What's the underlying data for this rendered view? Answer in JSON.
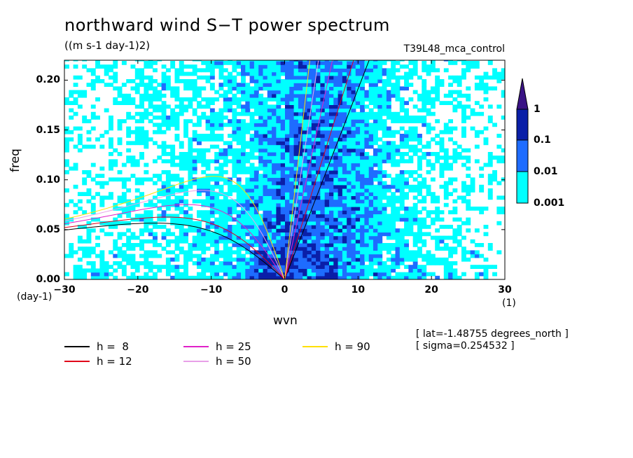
{
  "chart_data": {
    "type": "heatmap",
    "title": "northward wind S−T power spectrum",
    "units": "((m s-1 day-1)2)",
    "experiment": "T39L48_mca_control",
    "xlabel": "wvn",
    "xunit": "(1)",
    "ylabel": "freq",
    "yunit": "(day-1)",
    "xlim": [
      -30,
      30
    ],
    "ylim": [
      0,
      0.22
    ],
    "x_ticks": [
      -30,
      -20,
      -10,
      0,
      10,
      20,
      30
    ],
    "x_tick_labels": [
      "−30",
      "−20",
      "−10",
      "0",
      "10",
      "20",
      "30"
    ],
    "y_ticks": [
      0,
      0.05,
      0.1,
      0.15,
      0.2
    ],
    "y_tick_labels": [
      "0.00",
      "0.05",
      "0.10",
      "0.15",
      "0.20"
    ],
    "colorbar": {
      "levels": [
        0.001,
        0.01,
        0.1,
        1
      ],
      "labels": [
        "0.001",
        "0.01",
        "0.1",
        "1"
      ],
      "colors": [
        "#00ffff",
        "#1e6cff",
        "#0a1fa8",
        "#3a1385"
      ]
    },
    "annotations": [
      "[ lat=-1.48755 degrees_north ]",
      "[ sigma=0.254532 ]"
    ],
    "dispersion_curves": [
      {
        "label": "h =  8",
        "h": 8,
        "color": "#000000"
      },
      {
        "label": "h = 12",
        "h": 12,
        "color": "#e0001a"
      },
      {
        "label": "h = 25",
        "h": 25,
        "color": "#e020c8"
      },
      {
        "label": "h = 50",
        "h": 50,
        "color": "#e8a0e8"
      },
      {
        "label": "h = 90",
        "h": 90,
        "color": "#ffe000"
      }
    ]
  }
}
